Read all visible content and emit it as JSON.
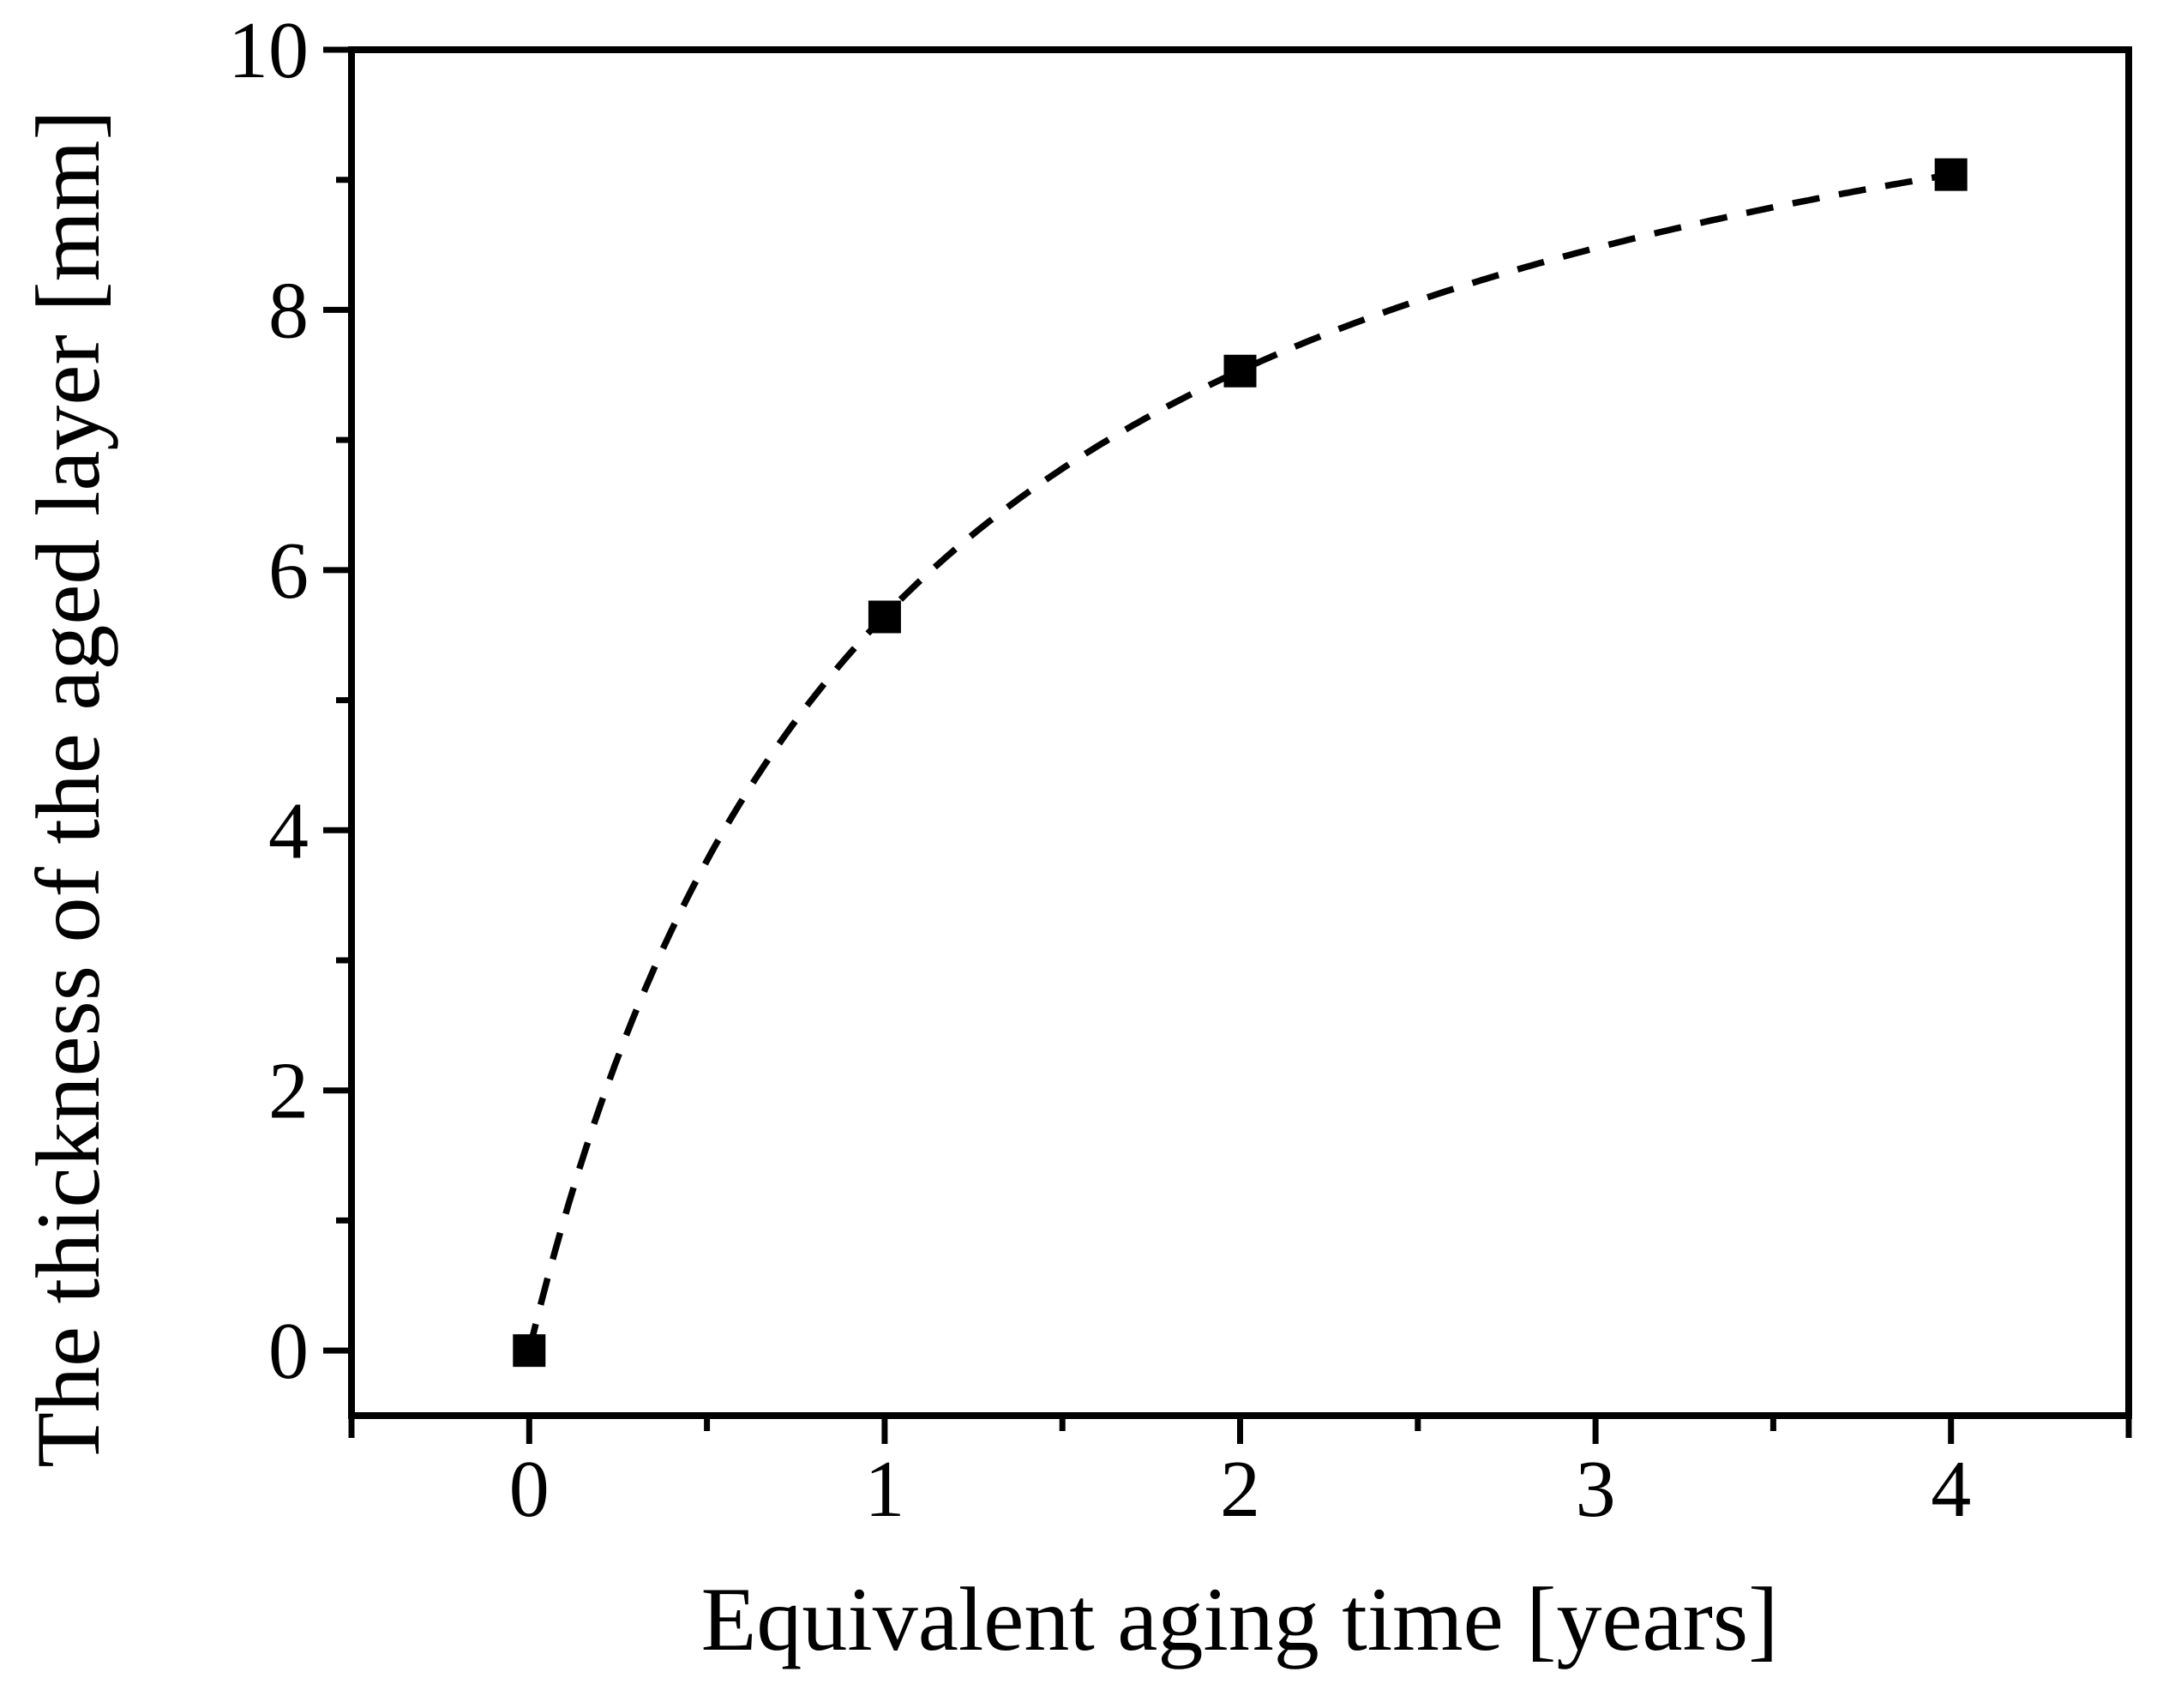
{
  "figure": {
    "description": "Black-and-white scatter plot with dashed trend curve on white background"
  },
  "chart_data": {
    "type": "scatter",
    "title": "",
    "xlabel": "Equivalent aging time [years]",
    "ylabel": "The thickness of the aged layer [mm]",
    "xlim": [
      -0.5,
      4.5
    ],
    "ylim": [
      -0.5,
      10
    ],
    "x_major_ticks": [
      0,
      1,
      2,
      3,
      4
    ],
    "x_tick_labels": [
      "0",
      "1",
      "2",
      "3",
      "4"
    ],
    "x_minor_ticks": [
      0.5,
      1.5,
      2.5,
      3.5
    ],
    "x_axis_end_ticks": [
      -0.5,
      4.5
    ],
    "y_major_ticks": [
      0,
      2,
      4,
      6,
      8,
      10
    ],
    "y_tick_labels": [
      "0",
      "2",
      "4",
      "6",
      "8",
      "10"
    ],
    "y_minor_ticks": [
      1,
      3,
      5,
      7,
      9
    ],
    "grid": false,
    "legend": null,
    "marker": "filled-square",
    "points": [
      [
        0,
        0
      ],
      [
        1,
        5.64
      ],
      [
        2,
        7.53
      ],
      [
        4,
        9.04
      ]
    ],
    "trend_curve": {
      "style": "dashed",
      "shape": "saturating y = a*x/(b+x)",
      "a": 11.3,
      "b": 1.0,
      "x_range": [
        0,
        4
      ]
    },
    "colors": {
      "line": "#000000",
      "marker": "#000000",
      "text": "#000000",
      "background": "#ffffff"
    }
  }
}
